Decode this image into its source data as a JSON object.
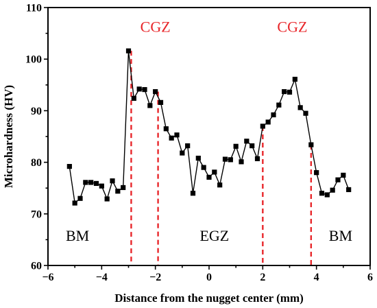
{
  "chart_data": {
    "type": "line",
    "xlabel": "Distance from the nugget center (mm)",
    "ylabel": "Microhardness (HV)",
    "xlim": [
      -6,
      6
    ],
    "ylim": [
      60,
      110
    ],
    "x_ticks": [
      -6,
      -4,
      -2,
      0,
      2,
      4,
      6
    ],
    "y_ticks": [
      60,
      70,
      80,
      90,
      100,
      110
    ],
    "x_tick_labels": [
      "−6",
      "−4",
      "−2",
      "0",
      "2",
      "4",
      "6"
    ],
    "y_tick_labels": [
      "60",
      "70",
      "80",
      "90",
      "100",
      "110"
    ],
    "grid": false,
    "legend": "none",
    "marker": "square",
    "series_color": "#000000",
    "accent_color": "#e8262a",
    "series": [
      {
        "x": [
          -5.2,
          -5.0,
          -4.8,
          -4.6,
          -4.4,
          -4.2,
          -4.0,
          -3.8,
          -3.6,
          -3.4,
          -3.2,
          -3.0,
          -2.8,
          -2.6,
          -2.4,
          -2.2,
          -2.0,
          -1.8,
          -1.6,
          -1.4,
          -1.2,
          -1.0,
          -0.8,
          -0.6,
          -0.4,
          -0.2,
          0.0,
          0.2,
          0.4,
          0.6,
          0.8,
          1.0,
          1.2,
          1.4,
          1.6,
          1.8,
          2.0,
          2.2,
          2.4,
          2.6,
          2.8,
          3.0,
          3.2,
          3.4,
          3.6,
          3.8,
          4.0,
          4.2,
          4.4,
          4.6,
          4.8,
          5.0,
          5.2
        ],
        "y": [
          79.2,
          72.1,
          73.0,
          76.1,
          76.1,
          75.9,
          75.4,
          72.9,
          76.4,
          74.4,
          75.1,
          101.6,
          92.4,
          94.2,
          94.1,
          91.0,
          93.7,
          91.6,
          86.5,
          84.7,
          85.3,
          81.8,
          83.2,
          74.0,
          80.8,
          79.0,
          77.1,
          78.1,
          75.6,
          80.6,
          80.5,
          83.1,
          80.1,
          84.1,
          83.2,
          80.7,
          87.0,
          87.8,
          89.2,
          91.1,
          93.7,
          93.6,
          96.1,
          90.6,
          89.5,
          83.4,
          78.0,
          74.0,
          73.7,
          74.6,
          76.6,
          77.5,
          74.7
        ]
      }
    ],
    "reference_lines": [
      {
        "x": -2.9,
        "y_end": 101.6
      },
      {
        "x": -1.9,
        "y_end": 93.7
      },
      {
        "x": 2.0,
        "y_end": 87.0
      },
      {
        "x": 3.8,
        "y_end": 83.4
      }
    ],
    "annotations": [
      {
        "text": "CGZ",
        "x": -2.0,
        "y": 105.3,
        "color": "#e8262a"
      },
      {
        "text": "CGZ",
        "x": 3.1,
        "y": 105.3,
        "color": "#e8262a"
      },
      {
        "text": "BM",
        "x": -4.9,
        "y": 64.8,
        "color": "#000000"
      },
      {
        "text": "EGZ",
        "x": 0.2,
        "y": 64.8,
        "color": "#000000"
      },
      {
        "text": "BM",
        "x": 4.9,
        "y": 64.8,
        "color": "#000000"
      }
    ]
  }
}
